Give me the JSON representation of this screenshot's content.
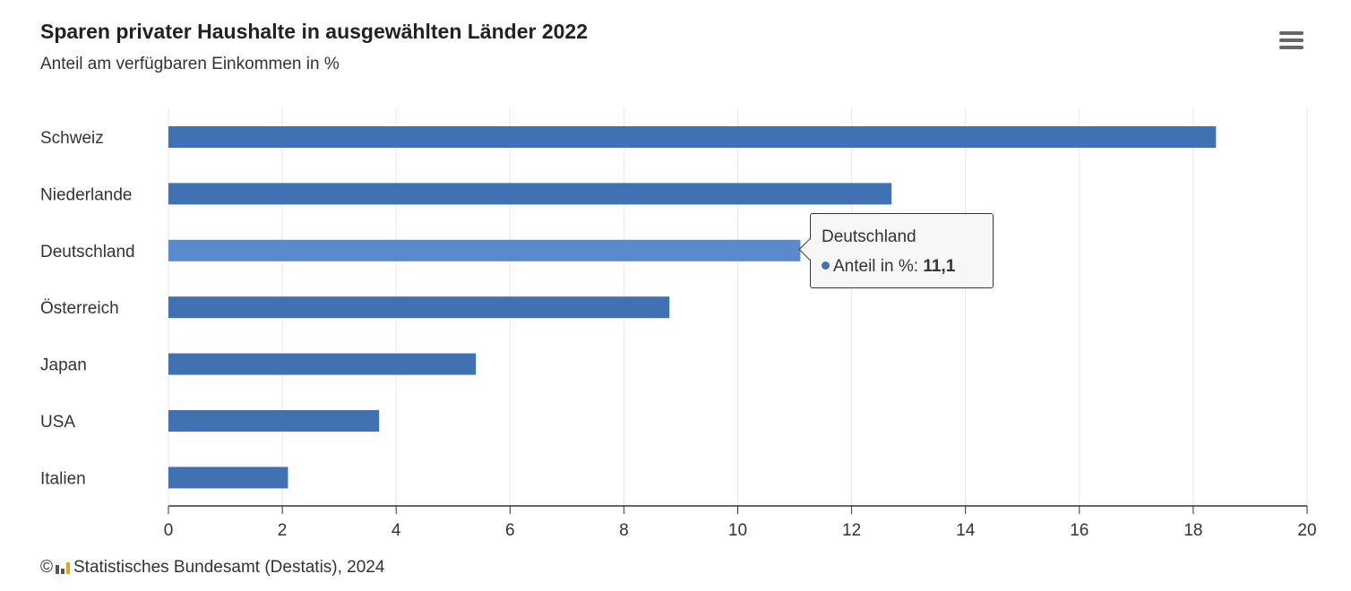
{
  "header": {
    "title": "Sparen privater Haushalte in ausgewählten Länder 2022",
    "subtitle": "Anteil am verfügbaren Einkommen in %"
  },
  "menu": {
    "icon": "hamburger-menu-icon"
  },
  "chart_data": {
    "type": "bar",
    "orientation": "horizontal",
    "categories": [
      "Schweiz",
      "Niederlande",
      "Deutschland",
      "Österreich",
      "Japan",
      "USA",
      "Italien"
    ],
    "series": [
      {
        "name": "Anteil in %",
        "values": [
          18.4,
          12.7,
          11.1,
          8.8,
          5.4,
          3.7,
          2.1
        ]
      }
    ],
    "xlim": [
      0,
      20
    ],
    "xticks": [
      "0",
      "2",
      "4",
      "6",
      "8",
      "10",
      "12",
      "14",
      "16",
      "18",
      "20"
    ],
    "grid": true,
    "highlighted_category": "Deutschland"
  },
  "colors": {
    "bar": "#4271b3",
    "bar_highlight": "#5b8acb",
    "grid": "#e6e6e6",
    "axis": "#333333"
  },
  "tooltip": {
    "title": "Deutschland",
    "label": "Anteil in %:",
    "value": "11,1"
  },
  "footer": {
    "credit": "© ",
    "source": "Statistisches Bundesamt (Destatis), 2024"
  }
}
